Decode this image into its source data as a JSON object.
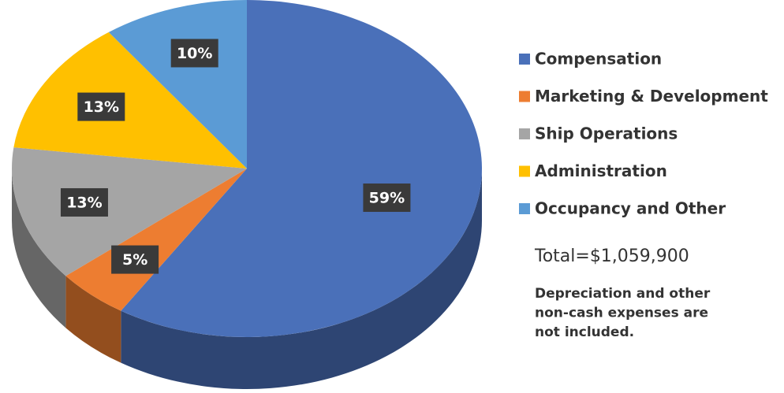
{
  "chart_data": {
    "type": "pie",
    "categories": [
      "Compensation",
      "Marketing & Development",
      "Ship Operations",
      "Administration",
      "Occupancy and Other"
    ],
    "values": [
      59,
      5,
      13,
      13,
      10
    ],
    "value_labels": [
      "59%",
      "5%",
      "13%",
      "13%",
      "10%"
    ],
    "colors": [
      "#4a70b9",
      "#ed7d31",
      "#a5a5a5",
      "#ffc000",
      "#5b9bd5"
    ],
    "total": "Total=$1,059,900",
    "note": [
      "Depreciation and other",
      "non-cash expenses are",
      "not included."
    ]
  }
}
